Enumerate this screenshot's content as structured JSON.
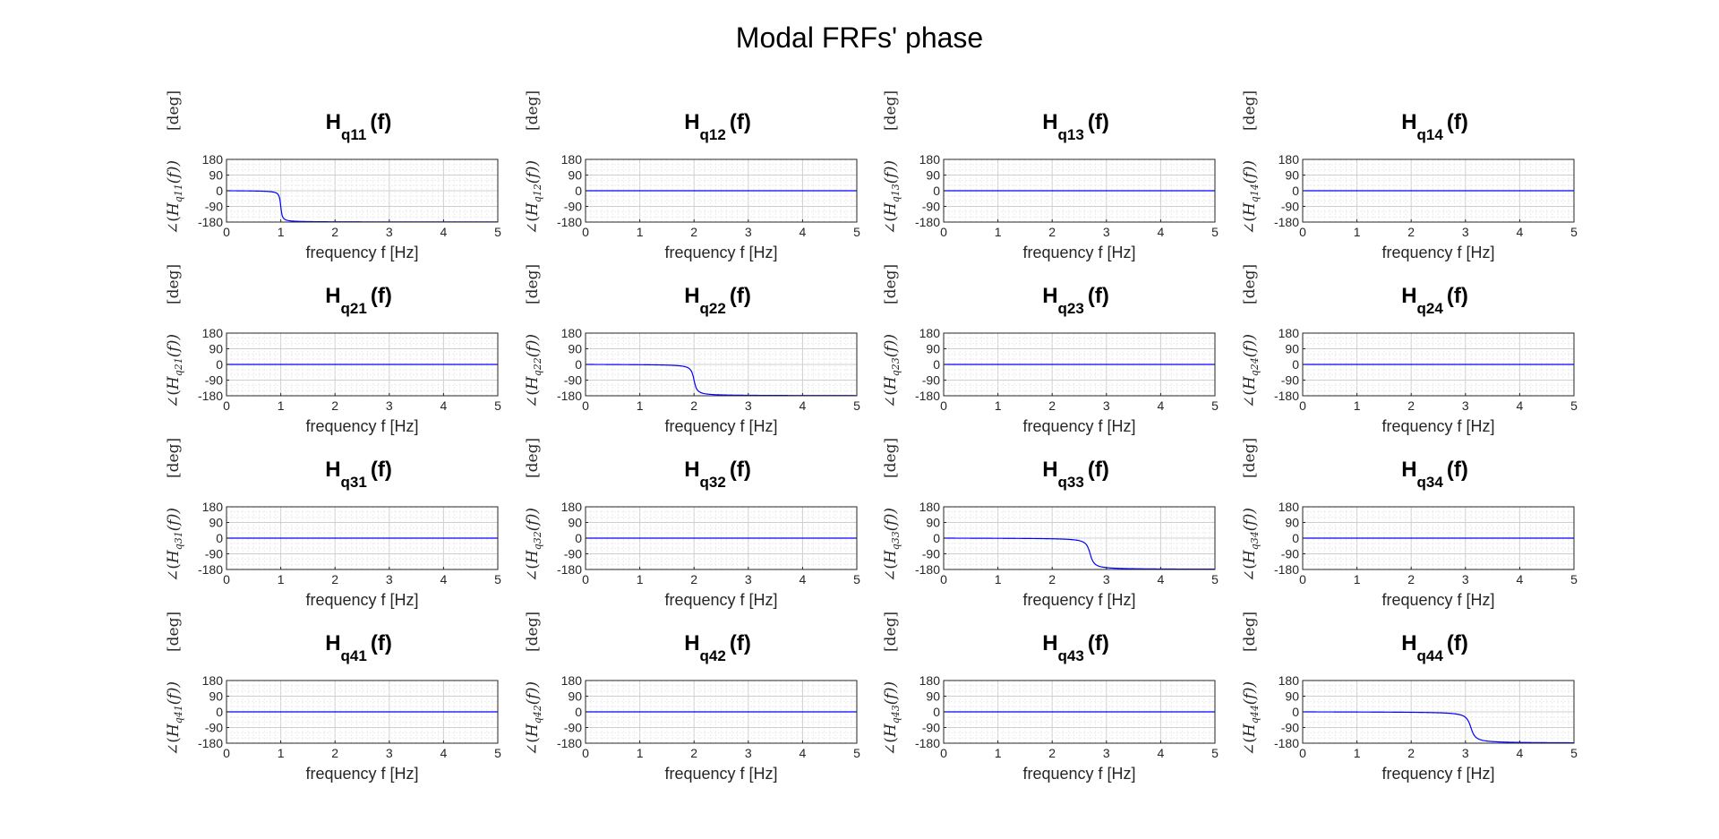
{
  "figure_title": "Modal FRFs' phase",
  "colors": {
    "line": "#0000ff",
    "axes": "#262626",
    "grid": "#d8d8d8",
    "background": "#ffffff"
  },
  "chart_data": [
    {
      "type": "line",
      "title": "H",
      "title_sub": "q11",
      "title_suffix": "(f)",
      "xlabel": "frequency f [Hz]",
      "ylabel": "∠(Hq11(f))",
      "ylabel_sub": "q11",
      "ylabel_unit": "[deg]",
      "xlim": [
        0,
        5
      ],
      "ylim": [
        -180,
        180
      ],
      "xticks": [
        0,
        1,
        2,
        3,
        4,
        5
      ],
      "yticks": [
        180,
        90,
        0,
        -90,
        -180
      ],
      "grid": true,
      "resonance_hz": 1.0,
      "series": [
        {
          "x": [
            0,
            0.5,
            0.8,
            0.9,
            0.95,
            0.98,
            1.0,
            1.02,
            1.05,
            1.1,
            1.2,
            1.5,
            2,
            3,
            4,
            5
          ],
          "y": [
            0,
            -1,
            -2,
            -5,
            -10,
            -25,
            -90,
            -155,
            -170,
            -175,
            -177,
            -178.5,
            -179,
            -179.5,
            -179.8,
            -179.9
          ]
        }
      ]
    },
    {
      "type": "line",
      "title": "H",
      "title_sub": "q12",
      "title_suffix": "(f)",
      "xlabel": "frequency f [Hz]",
      "ylabel": "∠(Hq12(f))",
      "ylabel_sub": "q12",
      "ylabel_unit": "[deg]",
      "xlim": [
        0,
        5
      ],
      "ylim": [
        -180,
        180
      ],
      "xticks": [
        0,
        1,
        2,
        3,
        4,
        5
      ],
      "yticks": [
        180,
        90,
        0,
        -90,
        -180
      ],
      "grid": true,
      "series": [
        {
          "x": [
            0,
            5
          ],
          "y": [
            0,
            0
          ]
        }
      ]
    },
    {
      "type": "line",
      "title": "H",
      "title_sub": "q13",
      "title_suffix": "(f)",
      "xlabel": "frequency f [Hz]",
      "ylabel": "∠(Hq13(f))",
      "ylabel_sub": "q13",
      "ylabel_unit": "[deg]",
      "xlim": [
        0,
        5
      ],
      "ylim": [
        -180,
        180
      ],
      "xticks": [
        0,
        1,
        2,
        3,
        4,
        5
      ],
      "yticks": [
        180,
        90,
        0,
        -90,
        -180
      ],
      "grid": true,
      "series": [
        {
          "x": [
            0,
            5
          ],
          "y": [
            0,
            0
          ]
        }
      ]
    },
    {
      "type": "line",
      "title": "H",
      "title_sub": "q14",
      "title_suffix": "(f)",
      "xlabel": "frequency f [Hz]",
      "ylabel": "∠(Hq14(f))",
      "ylabel_sub": "q14",
      "ylabel_unit": "[deg]",
      "xlim": [
        0,
        5
      ],
      "ylim": [
        -180,
        180
      ],
      "xticks": [
        0,
        1,
        2,
        3,
        4,
        5
      ],
      "yticks": [
        180,
        90,
        0,
        -90,
        -180
      ],
      "grid": true,
      "series": [
        {
          "x": [
            0,
            5
          ],
          "y": [
            0,
            0
          ]
        }
      ]
    },
    {
      "type": "line",
      "title": "H",
      "title_sub": "q21",
      "title_suffix": "(f)",
      "xlabel": "frequency f [Hz]",
      "ylabel": "∠(Hq21(f))",
      "ylabel_sub": "q21",
      "ylabel_unit": "[deg]",
      "xlim": [
        0,
        5
      ],
      "ylim": [
        -180,
        180
      ],
      "xticks": [
        0,
        1,
        2,
        3,
        4,
        5
      ],
      "yticks": [
        180,
        90,
        0,
        -90,
        -180
      ],
      "grid": true,
      "series": [
        {
          "x": [
            0,
            5
          ],
          "y": [
            0,
            0
          ]
        }
      ]
    },
    {
      "type": "line",
      "title": "H",
      "title_sub": "q22",
      "title_suffix": "(f)",
      "xlabel": "frequency f [Hz]",
      "ylabel": "∠(Hq22(f))",
      "ylabel_sub": "q22",
      "ylabel_unit": "[deg]",
      "xlim": [
        0,
        5
      ],
      "ylim": [
        -180,
        180
      ],
      "xticks": [
        0,
        1,
        2,
        3,
        4,
        5
      ],
      "yticks": [
        180,
        90,
        0,
        -90,
        -180
      ],
      "grid": true,
      "resonance_hz": 2.0,
      "series": [
        {
          "x": [
            0,
            1,
            1.6,
            1.8,
            1.9,
            1.95,
            2.0,
            2.05,
            2.1,
            2.2,
            2.4,
            3,
            4,
            5
          ],
          "y": [
            0,
            -1,
            -3,
            -6,
            -12,
            -25,
            -90,
            -155,
            -168,
            -174,
            -177,
            -178.5,
            -179.3,
            -179.6
          ]
        }
      ]
    },
    {
      "type": "line",
      "title": "H",
      "title_sub": "q23",
      "title_suffix": "(f)",
      "xlabel": "frequency f [Hz]",
      "ylabel": "∠(Hq23(f))",
      "ylabel_sub": "q23",
      "ylabel_unit": "[deg]",
      "xlim": [
        0,
        5
      ],
      "ylim": [
        -180,
        180
      ],
      "xticks": [
        0,
        1,
        2,
        3,
        4,
        5
      ],
      "yticks": [
        180,
        90,
        0,
        -90,
        -180
      ],
      "grid": true,
      "series": [
        {
          "x": [
            0,
            5
          ],
          "y": [
            0,
            0
          ]
        }
      ]
    },
    {
      "type": "line",
      "title": "H",
      "title_sub": "q24",
      "title_suffix": "(f)",
      "xlabel": "frequency f [Hz]",
      "ylabel": "∠(Hq24(f))",
      "ylabel_sub": "q24",
      "ylabel_unit": "[deg]",
      "xlim": [
        0,
        5
      ],
      "ylim": [
        -180,
        180
      ],
      "xticks": [
        0,
        1,
        2,
        3,
        4,
        5
      ],
      "yticks": [
        180,
        90,
        0,
        -90,
        -180
      ],
      "grid": true,
      "series": [
        {
          "x": [
            0,
            5
          ],
          "y": [
            0,
            0
          ]
        }
      ]
    },
    {
      "type": "line",
      "title": "H",
      "title_sub": "q31",
      "title_suffix": "(f)",
      "xlabel": "frequency f [Hz]",
      "ylabel": "∠(Hq31(f))",
      "ylabel_sub": "q31",
      "ylabel_unit": "[deg]",
      "xlim": [
        0,
        5
      ],
      "ylim": [
        -180,
        180
      ],
      "xticks": [
        0,
        1,
        2,
        3,
        4,
        5
      ],
      "yticks": [
        180,
        90,
        0,
        -90,
        -180
      ],
      "grid": true,
      "series": [
        {
          "x": [
            0,
            5
          ],
          "y": [
            0,
            0
          ]
        }
      ]
    },
    {
      "type": "line",
      "title": "H",
      "title_sub": "q32",
      "title_suffix": "(f)",
      "xlabel": "frequency f [Hz]",
      "ylabel": "∠(Hq32(f))",
      "ylabel_sub": "q32",
      "ylabel_unit": "[deg]",
      "xlim": [
        0,
        5
      ],
      "ylim": [
        -180,
        180
      ],
      "xticks": [
        0,
        1,
        2,
        3,
        4,
        5
      ],
      "yticks": [
        180,
        90,
        0,
        -90,
        -180
      ],
      "grid": true,
      "series": [
        {
          "x": [
            0,
            5
          ],
          "y": [
            0,
            0
          ]
        }
      ]
    },
    {
      "type": "line",
      "title": "H",
      "title_sub": "q33",
      "title_suffix": "(f)",
      "xlabel": "frequency f [Hz]",
      "ylabel": "∠(Hq33(f))",
      "ylabel_sub": "q33",
      "ylabel_unit": "[deg]",
      "xlim": [
        0,
        5
      ],
      "ylim": [
        -180,
        180
      ],
      "xticks": [
        0,
        1,
        2,
        3,
        4,
        5
      ],
      "yticks": [
        180,
        90,
        0,
        -90,
        -180
      ],
      "grid": true,
      "resonance_hz": 2.7,
      "series": [
        {
          "x": [
            0,
            1.5,
            2.3,
            2.5,
            2.6,
            2.65,
            2.7,
            2.75,
            2.8,
            2.9,
            3.1,
            3.5,
            4,
            5
          ],
          "y": [
            0,
            -1,
            -3,
            -6,
            -12,
            -25,
            -90,
            -155,
            -168,
            -174,
            -177,
            -178.5,
            -179.2,
            -179.6
          ]
        }
      ]
    },
    {
      "type": "line",
      "title": "H",
      "title_sub": "q34",
      "title_suffix": "(f)",
      "xlabel": "frequency f [Hz]",
      "ylabel": "∠(Hq34(f))",
      "ylabel_sub": "q34",
      "ylabel_unit": "[deg]",
      "xlim": [
        0,
        5
      ],
      "ylim": [
        -180,
        180
      ],
      "xticks": [
        0,
        1,
        2,
        3,
        4,
        5
      ],
      "yticks": [
        180,
        90,
        0,
        -90,
        -180
      ],
      "grid": true,
      "series": [
        {
          "x": [
            0,
            5
          ],
          "y": [
            0,
            0
          ]
        }
      ]
    },
    {
      "type": "line",
      "title": "H",
      "title_sub": "q41",
      "title_suffix": "(f)",
      "xlabel": "frequency f [Hz]",
      "ylabel": "∠(Hq41(f))",
      "ylabel_sub": "q41",
      "ylabel_unit": "[deg]",
      "xlim": [
        0,
        5
      ],
      "ylim": [
        -180,
        180
      ],
      "xticks": [
        0,
        1,
        2,
        3,
        4,
        5
      ],
      "yticks": [
        180,
        90,
        0,
        -90,
        -180
      ],
      "grid": true,
      "series": [
        {
          "x": [
            0,
            5
          ],
          "y": [
            0,
            0
          ]
        }
      ]
    },
    {
      "type": "line",
      "title": "H",
      "title_sub": "q42",
      "title_suffix": "(f)",
      "xlabel": "frequency f [Hz]",
      "ylabel": "∠(Hq42(f))",
      "ylabel_sub": "q42",
      "ylabel_unit": "[deg]",
      "xlim": [
        0,
        5
      ],
      "ylim": [
        -180,
        180
      ],
      "xticks": [
        0,
        1,
        2,
        3,
        4,
        5
      ],
      "yticks": [
        180,
        90,
        0,
        -90,
        -180
      ],
      "grid": true,
      "series": [
        {
          "x": [
            0,
            5
          ],
          "y": [
            0,
            0
          ]
        }
      ]
    },
    {
      "type": "line",
      "title": "H",
      "title_sub": "q43",
      "title_suffix": "(f)",
      "xlabel": "frequency f [Hz]",
      "ylabel": "∠(Hq43(f))",
      "ylabel_sub": "q43",
      "ylabel_unit": "[deg]",
      "xlim": [
        0,
        5
      ],
      "ylim": [
        -180,
        180
      ],
      "xticks": [
        0,
        1,
        2,
        3,
        4,
        5
      ],
      "yticks": [
        180,
        90,
        0,
        -90,
        -180
      ],
      "grid": true,
      "series": [
        {
          "x": [
            0,
            5
          ],
          "y": [
            0,
            0
          ]
        }
      ]
    },
    {
      "type": "line",
      "title": "H",
      "title_sub": "q44",
      "title_suffix": "(f)",
      "xlabel": "frequency f [Hz]",
      "ylabel": "∠(Hq44(f))",
      "ylabel_sub": "q44",
      "ylabel_unit": "[deg]",
      "xlim": [
        0,
        5
      ],
      "ylim": [
        -180,
        180
      ],
      "xticks": [
        0,
        1,
        2,
        3,
        4,
        5
      ],
      "yticks": [
        180,
        90,
        0,
        -90,
        -180
      ],
      "grid": true,
      "resonance_hz": 3.1,
      "series": [
        {
          "x": [
            0,
            2,
            2.7,
            2.9,
            3.0,
            3.05,
            3.1,
            3.15,
            3.2,
            3.3,
            3.5,
            4,
            4.5,
            5
          ],
          "y": [
            0,
            -1,
            -3,
            -6,
            -12,
            -25,
            -90,
            -155,
            -168,
            -174,
            -177,
            -178.5,
            -179.2,
            -179.5
          ]
        }
      ]
    }
  ]
}
